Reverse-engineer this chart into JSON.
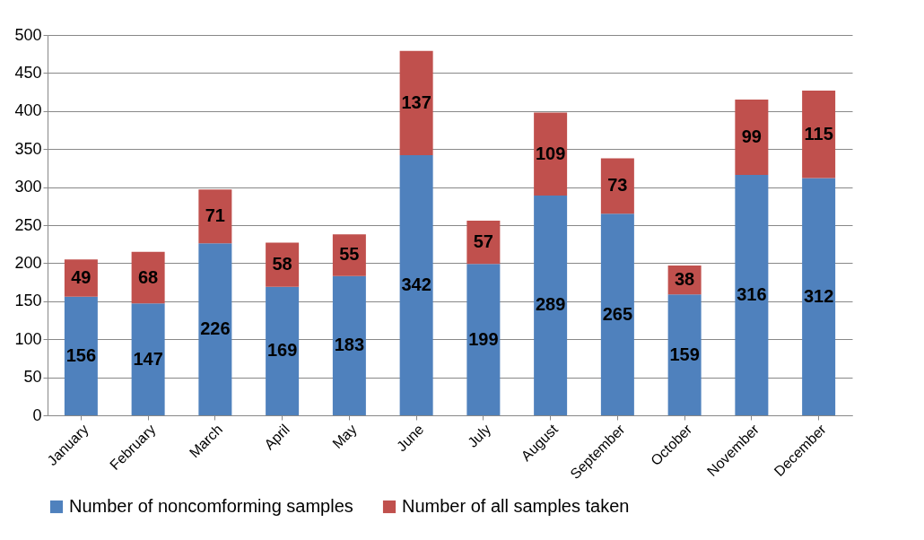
{
  "chart_data": {
    "type": "bar",
    "stacked": true,
    "categories": [
      "January",
      "February",
      "March",
      "April",
      "May",
      "June",
      "July",
      "August",
      "September",
      "October",
      "November",
      "December"
    ],
    "series": [
      {
        "name": "Number of noncomforming samples",
        "color": "#4f81bd",
        "values": [
          156,
          147,
          226,
          169,
          183,
          342,
          199,
          289,
          265,
          159,
          316,
          312
        ]
      },
      {
        "name": "Number of all samples taken",
        "color": "#c0504d",
        "values": [
          49,
          68,
          71,
          58,
          55,
          137,
          57,
          109,
          73,
          38,
          99,
          115
        ]
      }
    ],
    "ylim": [
      0,
      500
    ],
    "yticks": [
      0,
      50,
      100,
      150,
      200,
      250,
      300,
      350,
      400,
      450,
      500
    ],
    "grid": "y",
    "legend": "bottom",
    "data_labels": true
  }
}
